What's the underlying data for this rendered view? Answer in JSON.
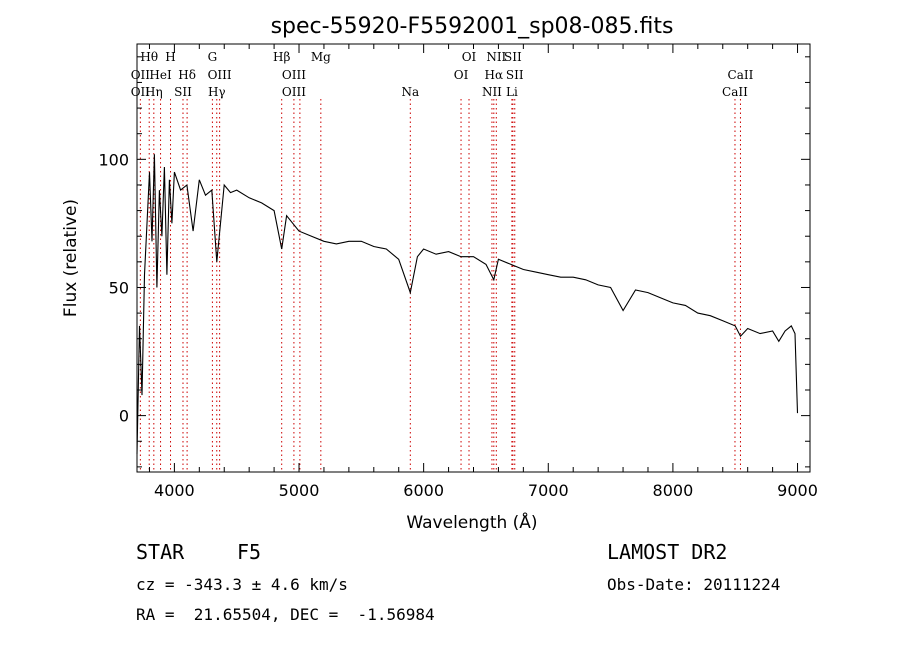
{
  "chart_data": {
    "type": "line",
    "title": "spec-55920-F5592001_sp08-085.fits",
    "xlabel": "Wavelength (Å)",
    "ylabel": "Flux (relative)",
    "xlim": [
      3700,
      9100
    ],
    "ylim": [
      -22,
      145
    ],
    "x_ticks": [
      4000,
      5000,
      6000,
      7000,
      8000,
      9000
    ],
    "y_ticks": [
      0,
      50,
      100
    ],
    "grid": false,
    "series": [
      {
        "x": [
          3700,
          3720,
          3740,
          3760,
          3780,
          3800,
          3820,
          3840,
          3860,
          3880,
          3900,
          3920,
          3940,
          3960,
          3980,
          4000,
          4050,
          4100,
          4150,
          4200,
          4250,
          4300,
          4340,
          4400,
          4450,
          4500,
          4600,
          4700,
          4800,
          4861,
          4900,
          5000,
          5100,
          5200,
          5300,
          5400,
          5500,
          5600,
          5700,
          5800,
          5893,
          5950,
          6000,
          6100,
          6200,
          6300,
          6400,
          6500,
          6563,
          6600,
          6700,
          6800,
          6900,
          7000,
          7100,
          7200,
          7300,
          7400,
          7500,
          7600,
          7700,
          7800,
          7900,
          8000,
          8100,
          8200,
          8300,
          8400,
          8500,
          8542,
          8600,
          8700,
          8800,
          8850,
          8900,
          8950,
          8980,
          9000
        ],
        "y": [
          -15,
          35,
          8,
          55,
          75,
          95,
          68,
          102,
          50,
          88,
          70,
          97,
          55,
          92,
          75,
          95,
          88,
          90,
          72,
          92,
          86,
          88,
          60,
          90,
          87,
          88,
          85,
          83,
          80,
          65,
          78,
          72,
          70,
          68,
          67,
          68,
          68,
          66,
          65,
          61,
          48,
          62,
          65,
          63,
          64,
          62,
          62,
          59,
          53,
          61,
          59,
          57,
          56,
          55,
          54,
          54,
          53,
          51,
          50,
          41,
          49,
          48,
          46,
          44,
          43,
          40,
          39,
          37,
          35,
          31,
          34,
          32,
          33,
          29,
          33,
          35,
          32,
          1
        ]
      }
    ],
    "line_markers": [
      {
        "label": "Hθ",
        "x": 3798,
        "row": 0
      },
      {
        "label": "OII",
        "x": 3727,
        "row": 1
      },
      {
        "label": "HeI",
        "x": 3889,
        "row": 1
      },
      {
        "label": "OII",
        "x": 3727,
        "row": 2
      },
      {
        "label": "Hη",
        "x": 3835,
        "row": 2
      },
      {
        "label": "H",
        "x": 3969,
        "row": 0
      },
      {
        "label": "Hδ",
        "x": 4102,
        "row": 1
      },
      {
        "label": "SII",
        "x": 4069,
        "row": 2
      },
      {
        "label": "G",
        "x": 4305,
        "row": 0
      },
      {
        "label": "OIII",
        "x": 4363,
        "row": 1
      },
      {
        "label": "Hγ",
        "x": 4340,
        "row": 2
      },
      {
        "label": "Hβ",
        "x": 4861,
        "row": 0
      },
      {
        "label": "OIII",
        "x": 4959,
        "row": 1
      },
      {
        "label": "OIII",
        "x": 4959,
        "row": 2
      },
      {
        "label": "Mg",
        "x": 5175,
        "row": 0
      },
      {
        "label": "Na",
        "x": 5893,
        "row": 2
      },
      {
        "label": "OI",
        "x": 6364,
        "row": 0
      },
      {
        "label": "OI",
        "x": 6300,
        "row": 1
      },
      {
        "label": "NII",
        "x": 6583,
        "row": 0
      },
      {
        "label": "SII",
        "x": 6716,
        "row": 0
      },
      {
        "label": "Hα",
        "x": 6563,
        "row": 1
      },
      {
        "label": "SII",
        "x": 6731,
        "row": 1
      },
      {
        "label": "NII",
        "x": 6548,
        "row": 2
      },
      {
        "label": "Li",
        "x": 6708,
        "row": 2
      },
      {
        "label": "CaII",
        "x": 8542,
        "row": 1
      },
      {
        "label": "CaII",
        "x": 8498,
        "row": 2
      }
    ],
    "marker_lines": [
      3727,
      3798,
      3835,
      3889,
      3969,
      4069,
      4102,
      4305,
      4340,
      4363,
      4861,
      4959,
      5007,
      5175,
      5893,
      6300,
      6364,
      6548,
      6563,
      6583,
      6708,
      6716,
      6731,
      8498,
      8542
    ],
    "colors": {
      "spectrum": "#000000",
      "marker": "#cc0000"
    }
  },
  "info": {
    "object_class": "STAR",
    "subclass": "F5",
    "survey": "LAMOST DR2",
    "cz": "cz = -343.3 ± 4.6 km/s",
    "obs_date": "Obs-Date: 20111224",
    "coords": "RA =  21.65504, DEC =  -1.56984"
  }
}
